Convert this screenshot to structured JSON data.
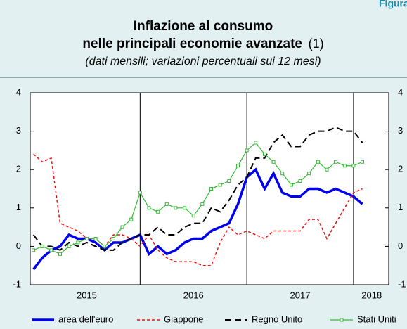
{
  "header_label": "Figura",
  "chart_data": {
    "type": "line",
    "title": [
      "Inflazione al consumo",
      "nelle principali economie avanzate"
    ],
    "title_note": "(1)",
    "subtitle": "(dati mensili; variazioni percentuali sui 12 mesi)",
    "x": [
      2015,
      2015.083,
      2015.167,
      2015.25,
      2015.333,
      2015.417,
      2015.5,
      2015.583,
      2015.667,
      2015.75,
      2015.833,
      2015.917,
      2016,
      2016.083,
      2016.167,
      2016.25,
      2016.333,
      2016.417,
      2016.5,
      2016.583,
      2016.667,
      2016.75,
      2016.833,
      2016.917,
      2017,
      2017.083,
      2017.167,
      2017.25,
      2017.333,
      2017.417,
      2017.5,
      2017.583,
      2017.667,
      2017.75,
      2017.833,
      2017.917,
      2018,
      2018.083
    ],
    "xlim": [
      2014.97,
      2018.33
    ],
    "xticks": [
      {
        "value": 2015.5,
        "label": "2015"
      },
      {
        "value": 2016.5,
        "label": "2016"
      },
      {
        "value": 2017.5,
        "label": "2017"
      },
      {
        "value": 2018.17,
        "label": "2018"
      }
    ],
    "xgrid": [
      2016,
      2017,
      2018
    ],
    "ylim": [
      -1,
      4
    ],
    "yticks": [
      -1,
      0,
      1,
      2,
      3,
      4
    ],
    "y2lim": [
      -1,
      4
    ],
    "y2ticks": [
      -1,
      0,
      1,
      2,
      3,
      4
    ],
    "series": [
      {
        "name": "area dell'euro",
        "color": "#0000ee",
        "style": "solid",
        "values": [
          -0.6,
          -0.3,
          -0.1,
          0.0,
          0.3,
          0.2,
          0.2,
          0.1,
          -0.1,
          0.1,
          0.1,
          0.2,
          0.3,
          -0.2,
          0.0,
          -0.2,
          -0.1,
          0.1,
          0.2,
          0.2,
          0.4,
          0.5,
          0.6,
          1.1,
          1.8,
          2.0,
          1.5,
          1.9,
          1.4,
          1.3,
          1.3,
          1.5,
          1.5,
          1.4,
          1.5,
          1.4,
          1.3,
          1.1
        ]
      },
      {
        "name": "Giappone",
        "color": "#ee1111",
        "style": "dotted",
        "values": [
          2.4,
          2.2,
          2.3,
          0.6,
          0.5,
          0.4,
          0.2,
          0.2,
          0.0,
          0.3,
          0.3,
          0.2,
          0.0,
          0.3,
          -0.1,
          -0.3,
          -0.4,
          -0.4,
          -0.4,
          -0.5,
          -0.5,
          0.1,
          0.5,
          0.3,
          0.4,
          0.3,
          0.2,
          0.4,
          0.4,
          0.4,
          0.4,
          0.7,
          0.7,
          0.2,
          0.6,
          1.0,
          1.4,
          1.5
        ]
      },
      {
        "name": "Regno Unito",
        "color": "#000000",
        "style": "dashed",
        "values": [
          0.3,
          0.0,
          0.0,
          -0.1,
          0.1,
          0.0,
          0.1,
          0.0,
          -0.1,
          -0.1,
          0.1,
          0.2,
          0.3,
          0.3,
          0.5,
          0.3,
          0.3,
          0.5,
          0.6,
          0.6,
          1.0,
          0.9,
          1.2,
          1.6,
          1.8,
          2.3,
          2.3,
          2.7,
          2.9,
          2.6,
          2.6,
          2.9,
          3.0,
          3.0,
          3.1,
          3.0,
          3.0,
          2.7
        ]
      },
      {
        "name": "Stati Uniti",
        "color": "#33bb33",
        "style": "markers",
        "values": [
          -0.1,
          0.0,
          -0.1,
          -0.2,
          0.0,
          0.1,
          0.2,
          0.2,
          0.0,
          0.2,
          0.5,
          0.7,
          1.4,
          1.0,
          0.9,
          1.1,
          1.0,
          1.0,
          0.8,
          1.1,
          1.5,
          1.6,
          1.7,
          2.1,
          2.5,
          2.7,
          2.4,
          2.2,
          1.9,
          1.6,
          1.7,
          1.9,
          2.2,
          2.0,
          2.2,
          2.1,
          2.1,
          2.2
        ]
      }
    ],
    "legend": "bottom"
  }
}
